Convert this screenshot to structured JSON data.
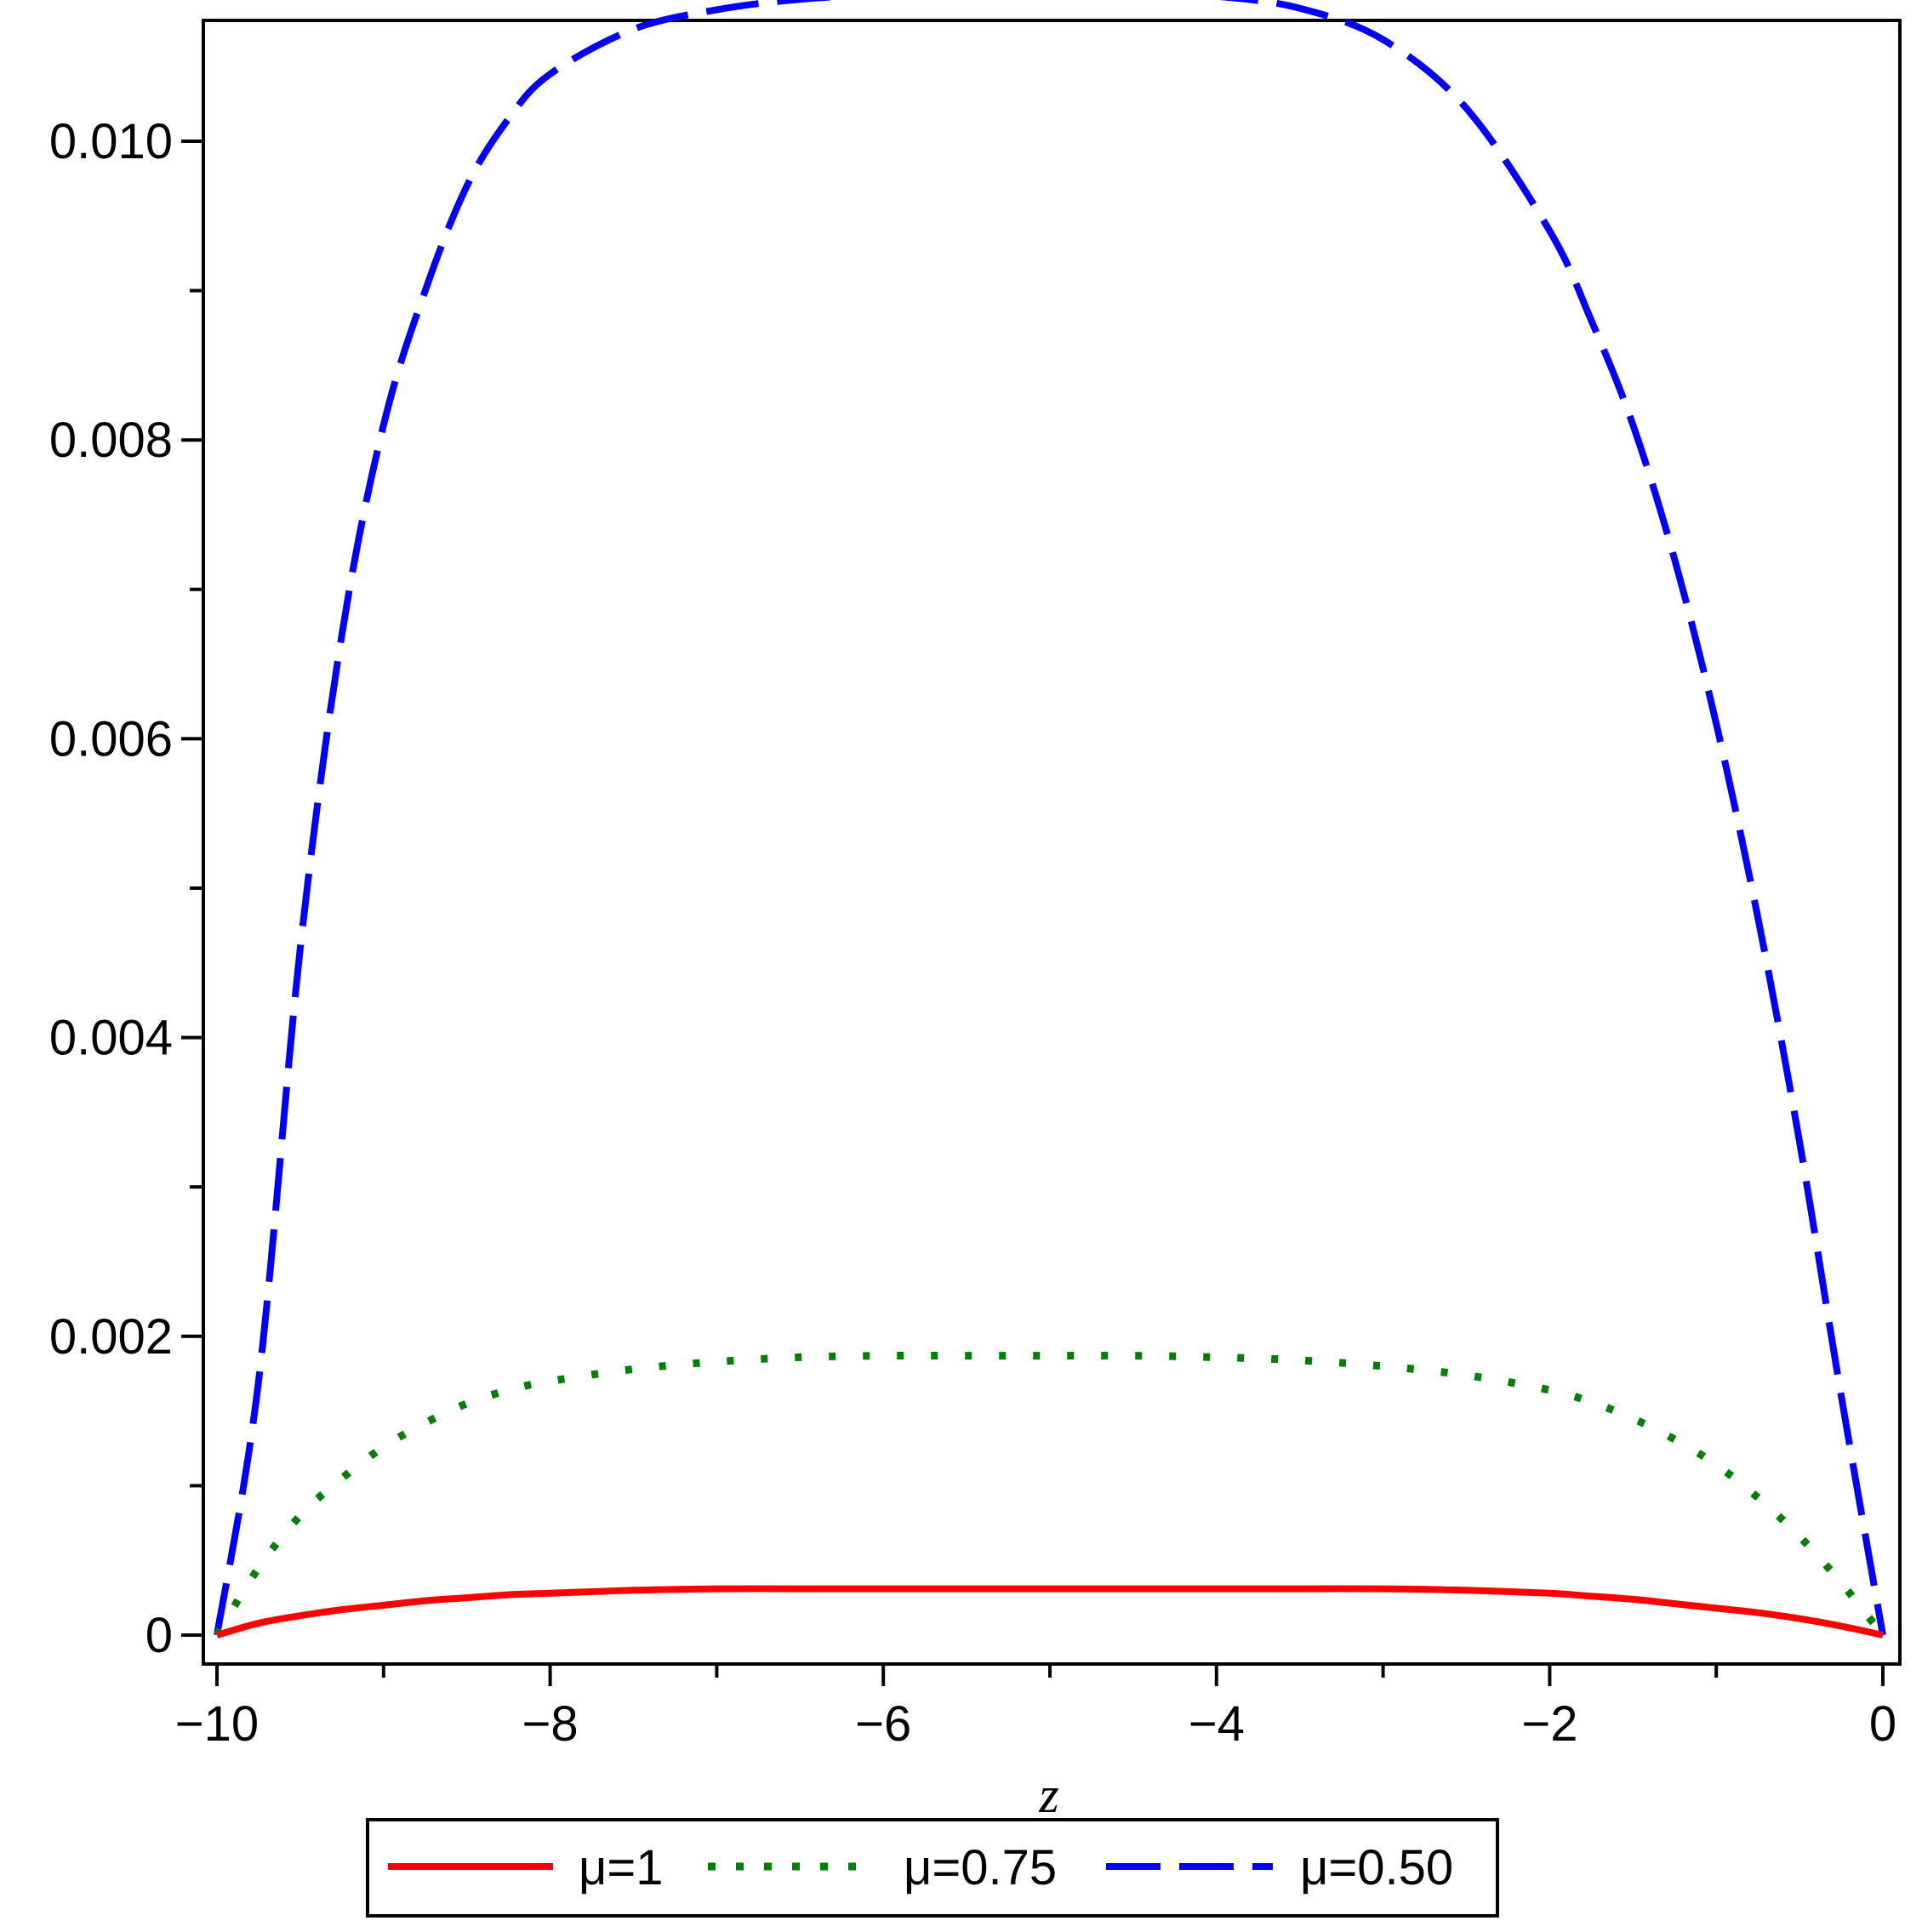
{
  "chart_data": {
    "type": "line",
    "title": "",
    "xlabel": "z",
    "ylabel": "",
    "xlim": [
      -10,
      0
    ],
    "ylim": [
      0,
      0.0108
    ],
    "x_ticks": [
      -10,
      -8,
      -6,
      -4,
      -2,
      0
    ],
    "x_tick_labels": [
      "−10",
      "−8",
      "−6",
      "−4",
      "−2",
      "0"
    ],
    "x_minor_ticks": [
      -9,
      -7,
      -5,
      -3,
      -1
    ],
    "y_ticks": [
      0,
      0.002,
      0.004,
      0.006,
      0.008,
      0.01
    ],
    "y_tick_labels": [
      "0",
      "0.002",
      "0.004",
      "0.006",
      "0.008",
      "0.010"
    ],
    "y_minor_ticks": [
      0.001,
      0.003,
      0.005,
      0.007,
      0.009
    ],
    "grid": false,
    "legend_position": "bottom",
    "x": [
      -10,
      -9.75,
      -9.5,
      -9.25,
      -9,
      -8.75,
      -8.5,
      -8.25,
      -8,
      -7.5,
      -7,
      -6.5,
      -6,
      -5.5,
      -5,
      -4.5,
      -4,
      -3.5,
      -3,
      -2.5,
      -2,
      -1.75,
      -1.5,
      -1.25,
      -1,
      -0.75,
      -0.5,
      -0.25,
      0
    ],
    "series": [
      {
        "name": "μ=1",
        "color": "#ff0000",
        "style": "solid",
        "values": [
          0,
          8e-05,
          0.00013,
          0.00017,
          0.0002,
          0.00023,
          0.00025,
          0.00027,
          0.00028,
          0.0003,
          0.00031,
          0.00031,
          0.00031,
          0.00031,
          0.00031,
          0.00031,
          0.00031,
          0.00031,
          0.00031,
          0.0003,
          0.00028,
          0.00026,
          0.00024,
          0.00021,
          0.00018,
          0.00015,
          0.00011,
          6e-05,
          0
        ]
      },
      {
        "name": "μ=0.75",
        "color": "#008000",
        "style": "dotted",
        "values": [
          0,
          0.00045,
          0.0008,
          0.00105,
          0.00126,
          0.00142,
          0.00155,
          0.00164,
          0.0017,
          0.00178,
          0.00183,
          0.00186,
          0.00187,
          0.00187,
          0.00187,
          0.00187,
          0.00186,
          0.00184,
          0.0018,
          0.00174,
          0.00164,
          0.00156,
          0.00145,
          0.00131,
          0.00114,
          0.00092,
          0.00066,
          0.00035,
          0
        ]
      },
      {
        "name": "μ=0.50",
        "color": "#0000ff",
        "style": "dashed",
        "values": [
          0,
          0.0017,
          0.0046,
          0.0067,
          0.0081,
          0.009,
          0.0097,
          0.01015,
          0.01045,
          0.01075,
          0.01088,
          0.01095,
          0.01098,
          0.01099,
          0.01099,
          0.01099,
          0.01097,
          0.01089,
          0.01068,
          0.01022,
          0.0094,
          0.0088,
          0.0081,
          0.0072,
          0.0061,
          0.0048,
          0.0033,
          0.0016,
          0
        ]
      }
    ]
  }
}
